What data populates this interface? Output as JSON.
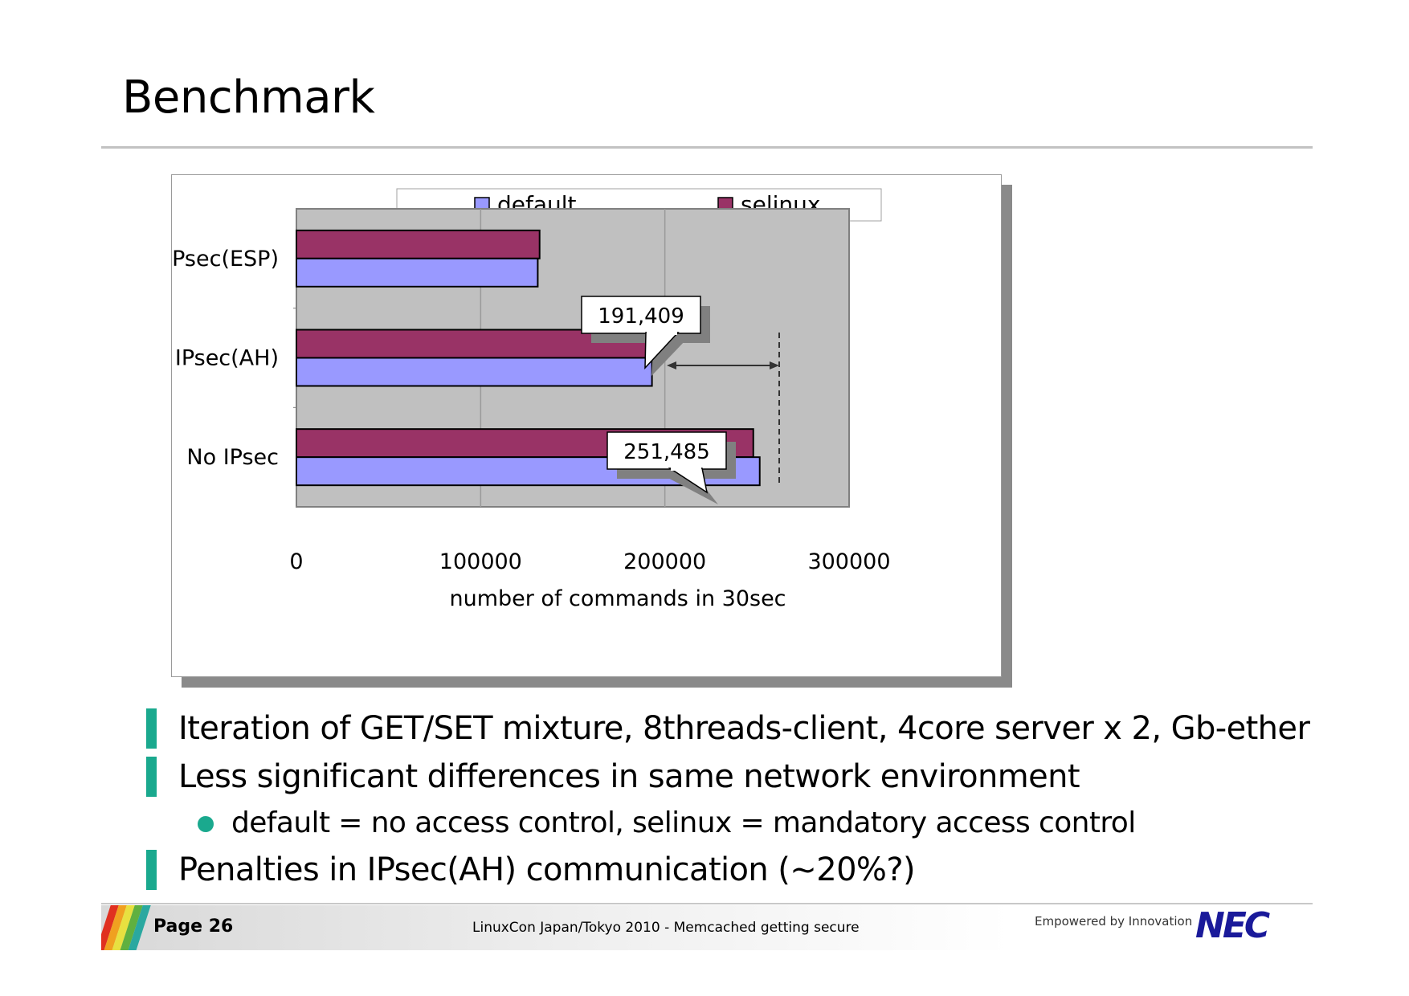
{
  "slide": {
    "title": "Benchmark"
  },
  "chart_data": {
    "type": "bar",
    "orientation": "horizontal",
    "categories": [
      "IPsec(ESP)",
      "IPsec(AH)",
      "No IPsec"
    ],
    "series": [
      {
        "name": "selinux",
        "color": "#993366",
        "values": [
          132000,
          191409,
          248000
        ]
      },
      {
        "name": "default",
        "color": "#9999ff",
        "values": [
          131000,
          193000,
          251485
        ]
      }
    ],
    "xlabel": "number of commands in 30sec",
    "xlim": [
      0,
      300000
    ],
    "xticks": [
      "0",
      "100000",
      "200000",
      "300000"
    ],
    "grid": true,
    "plot_background": "#c0c0c0",
    "legend": {
      "placement": "top",
      "entries": [
        "default",
        "selinux"
      ]
    },
    "annotations": [
      {
        "text": "191,409",
        "category": "IPsec(AH)",
        "series": "selinux",
        "value": 191409
      },
      {
        "text": "251,485",
        "category": "No IPsec",
        "series": "default",
        "value": 251485
      }
    ]
  },
  "bullets": [
    {
      "level": 1,
      "text": "Iteration of GET/SET mixture, 8threads-client, 4core server x 2, Gb-ether"
    },
    {
      "level": 1,
      "text": "Less significant differences in same network environment"
    },
    {
      "level": 2,
      "text": "default = no access control, selinux = mandatory access control"
    },
    {
      "level": 1,
      "text": "Penalties in IPsec(AH) communication (~20%?)"
    }
  ],
  "footer": {
    "page": "Page 26",
    "conference": "LinuxCon Japan/Tokyo 2010 - Memcached getting secure",
    "tagline": "Empowered by Innovation",
    "logo": "NEC"
  },
  "colors": {
    "accent": "#1aa98e",
    "logo": "#1a1a9a"
  }
}
